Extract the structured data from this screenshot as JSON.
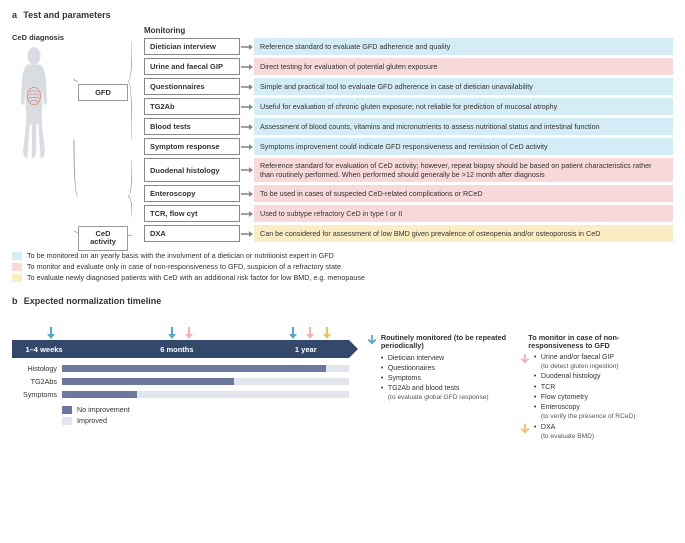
{
  "colors": {
    "blue_bg": "#d4ecf5",
    "pink_bg": "#f7d9d9",
    "yellow_bg": "#fbedc3",
    "arrow_blue": "#5aa8c9",
    "arrow_pink": "#eeb4b4",
    "arrow_yellow": "#e6c566",
    "tl_bar": "#34486b",
    "nb_dark": "#6d789f",
    "nb_light": "#e3e5ee"
  },
  "panelA": {
    "label": "a",
    "title": "Test and parameters",
    "diagnosis_label": "CeD diagnosis",
    "branch_gfd": "GFD",
    "branch_activity": "CeD activity",
    "monitoring_head": "Monitoring",
    "rows": [
      {
        "label": "Dietician interview",
        "desc": "Reference standard to evaluate GFD adherence and quality",
        "bg": "blue_bg"
      },
      {
        "label": "Urine and faecal GIP",
        "desc": "Direct testing for evaluation of potential gluten exposure",
        "bg": "pink_bg"
      },
      {
        "label": "Questionnaires",
        "desc": "Simple and practical tool to evaluate GFD adherence in case of dietician unavailability",
        "bg": "blue_bg"
      },
      {
        "label": "TG2Ab",
        "desc": "Useful for evaluation of chronic gluten exposure; not reliable for prediction of mucosal atrophy",
        "bg": "blue_bg"
      },
      {
        "label": "Blood tests",
        "desc": "Assessment of blood counts, vitamins and micronutrients to assess nutritional status and intestinal function",
        "bg": "blue_bg"
      },
      {
        "label": "Symptom response",
        "desc": "Symptoms improvement could indicate GFD responsiveness and remission of CeD activity",
        "bg": "blue_bg"
      },
      {
        "label": "Duodenal histology",
        "desc": "Reference standard for evaluation of CeD activity; however, repeat biopsy should be based on patient characteristics rather than routinely performed. When performed should generally be >12 month after diagnosis",
        "bg": "pink_bg"
      },
      {
        "label": "Enteroscopy",
        "desc": "To be used in cases of suspected CeD-related complications or RCeD",
        "bg": "pink_bg"
      },
      {
        "label": "TCR, flow cyt",
        "desc": "Used to subtype refractory CeD in type I or II",
        "bg": "pink_bg"
      },
      {
        "label": "DXA",
        "desc": "Can be considered for assessment of low BMD given prevalence of osteopenia and/or osteoporosis in CeD",
        "bg": "yellow_bg"
      }
    ],
    "legend": [
      {
        "sw": "blue_bg",
        "text": "To be monitored on an yearly basis with the involvment of a dietician or nutritionist expert in GFD"
      },
      {
        "sw": "pink_bg",
        "text": "To monitor and evaluate only in case of non-responsiveness to GFD, suspicion of a refractory state"
      },
      {
        "sw": "yellow_bg",
        "text": "To evaluate newly diagnosed patients with CeD with an additional risk factor for low BMD, e.g. menopause"
      }
    ]
  },
  "panelB": {
    "label": "b",
    "title": "Expected normalization timeline",
    "tl_ticks": [
      {
        "text": "1–4 weeks",
        "pos_pct": 4
      },
      {
        "text": "6 months",
        "pos_pct": 44
      },
      {
        "text": "1 year",
        "pos_pct": 84
      }
    ],
    "top_arrows": [
      {
        "color": "arrow_blue",
        "pos_pct": 10
      },
      {
        "color": "arrow_blue",
        "pos_pct": 46
      },
      {
        "color": "arrow_pink",
        "pos_pct": 51
      },
      {
        "color": "arrow_blue",
        "pos_pct": 82
      },
      {
        "color": "arrow_pink",
        "pos_pct": 87
      },
      {
        "color": "arrow_yellow",
        "pos_pct": 92
      }
    ],
    "bars": [
      {
        "label": "Histology",
        "fill_pct": 92
      },
      {
        "label": "TG2Abs",
        "fill_pct": 60
      },
      {
        "label": "Symptoms",
        "fill_pct": 26
      }
    ],
    "legend": [
      {
        "sw": "nb_dark",
        "text": "No improvement"
      },
      {
        "sw": "nb_light",
        "text": "Improved"
      }
    ],
    "routine": {
      "title": "Routinely monitored (to be repeated periodically)",
      "items": [
        {
          "t": "Dietician interview"
        },
        {
          "t": "Questionnaires"
        },
        {
          "t": "Symptoms"
        },
        {
          "t": "TG2Ab and blood tests",
          "s": "(to evaluate global GFD response)"
        }
      ]
    },
    "nonresp": {
      "title": "To monitor in case of non-responsiveness to GFD",
      "items_pink": [
        {
          "t": "Urine and/or faecal GIP",
          "s": "(to detect gluten ingestion)"
        },
        {
          "t": "Duodenal histology"
        },
        {
          "t": "TCR"
        },
        {
          "t": "Flow cytometry"
        },
        {
          "t": "Enteroscopy",
          "s": "(to verify the presence of RCeD)"
        }
      ],
      "items_yellow": [
        {
          "t": "DXA",
          "s": "(to evaluate BMD)"
        }
      ]
    }
  }
}
